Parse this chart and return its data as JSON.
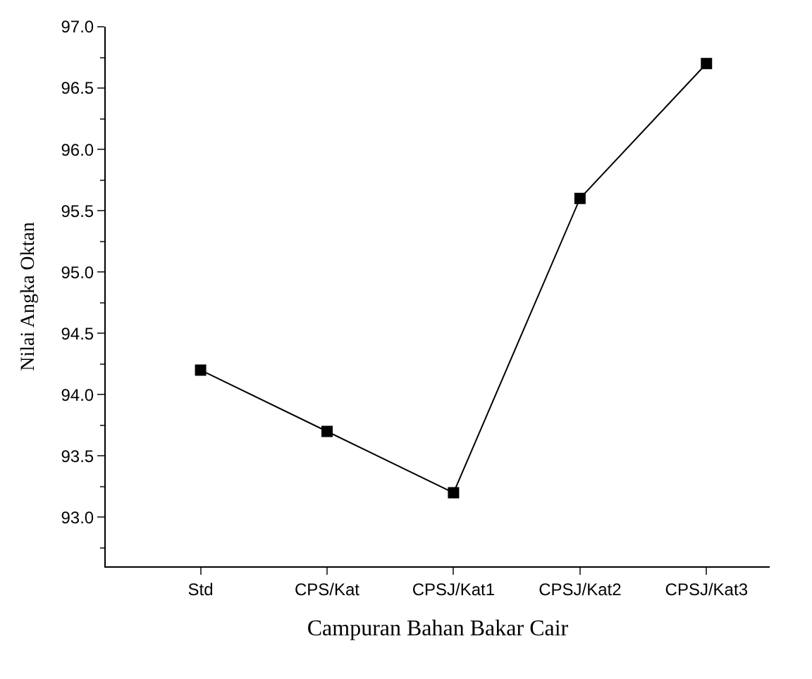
{
  "chart_data": {
    "type": "line",
    "xlabel": "Campuran Bahan Bakar Cair",
    "ylabel": "Nilai Angka Oktan",
    "categories": [
      "Std",
      "CPS/Kat",
      "CPSJ/Kat1",
      "CPSJ/Kat2",
      "CPSJ/Kat3"
    ],
    "series": [
      {
        "color": "#000000",
        "values": [
          94.2,
          93.7,
          93.2,
          95.6,
          96.7
        ]
      }
    ],
    "ylim": [
      92.6,
      97.0
    ],
    "yticks": [
      {
        "value": 93,
        "label": "93.0"
      },
      93.5,
      {
        "value": 94,
        "label": "94.0"
      },
      94.5,
      {
        "value": 95,
        "label": "95.0"
      },
      95.5,
      {
        "value": 96,
        "label": "96.0"
      },
      96.5,
      {
        "value": 97,
        "label": "97.0"
      }
    ],
    "marker": "square",
    "line_style": "solid"
  }
}
